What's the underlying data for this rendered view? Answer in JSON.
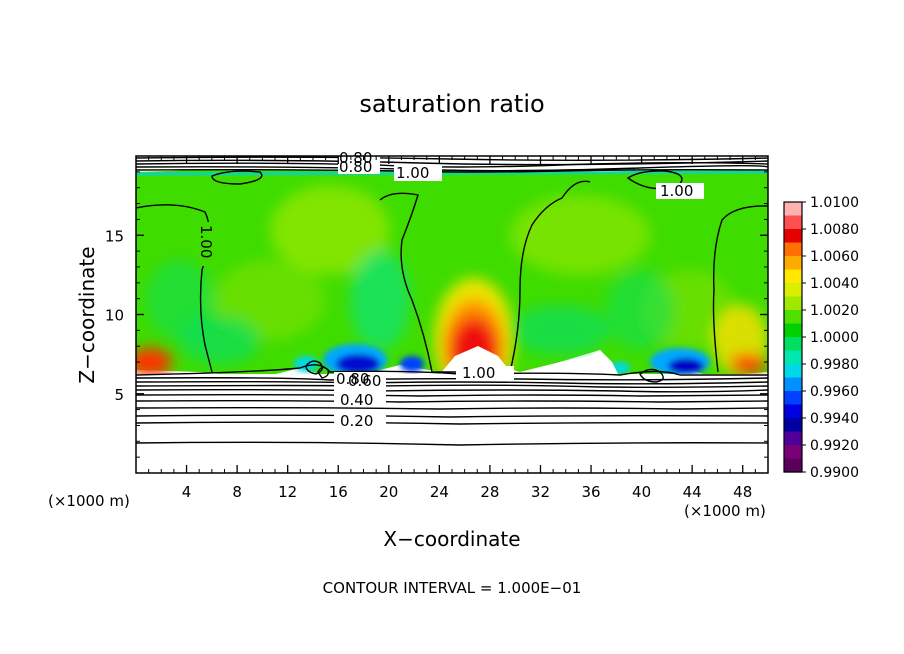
{
  "chart_data": {
    "type": "heatmap",
    "title": "saturation ratio",
    "xlabel": "X−coordinate",
    "ylabel": "Z−coordinate",
    "x_unit_left": "(×1000 m)",
    "x_unit_right": "(×1000 m)",
    "xlim": [
      0,
      50
    ],
    "ylim": [
      0,
      20
    ],
    "x_ticks": [
      4,
      8,
      12,
      16,
      20,
      24,
      28,
      32,
      36,
      40,
      44,
      48
    ],
    "x_tick_labels": [
      "4",
      "8",
      "12",
      "16",
      "20",
      "24",
      "28",
      "32",
      "36",
      "40",
      "44",
      "48"
    ],
    "y_ticks": [
      5,
      10,
      15
    ],
    "y_tick_labels": [
      "5",
      "10",
      "15"
    ],
    "colorbar": {
      "range": [
        0.99,
        1.01
      ],
      "levels": [
        "1.0100",
        "1.0080",
        "1.0060",
        "1.0040",
        "1.0020",
        "1.0000",
        "0.9980",
        "0.9960",
        "0.9940",
        "0.9920",
        "0.9900"
      ],
      "colors": [
        "#ffb0b0",
        "#ff5050",
        "#e60000",
        "#ff7000",
        "#ffaa00",
        "#ffe800",
        "#d8f000",
        "#a0e800",
        "#50e000",
        "#00d000",
        "#00e060",
        "#00e8b0",
        "#00d8e8",
        "#0090ff",
        "#0040ff",
        "#0000e0",
        "#0000a0",
        "#50009a",
        "#7a007a",
        "#5a005a"
      ]
    },
    "contour_labels": [
      {
        "text": "0.80",
        "x": 17.3,
        "z": 19.4
      },
      {
        "text": "0.80",
        "x": 17.3,
        "z": 19.0
      },
      {
        "text": "1.00",
        "x": 22.5,
        "z": 18.7
      },
      {
        "text": "1.00",
        "x": 41.2,
        "z": 17.7
      },
      {
        "text": "1.00",
        "x": 6.0,
        "z": 14.5
      },
      {
        "text": "1.00",
        "x": 28.5,
        "z": 6.2
      },
      {
        "text": "0.80",
        "x": 17.0,
        "z": 5.6
      },
      {
        "text": "0.60",
        "x": 17.0,
        "z": 5.3
      },
      {
        "text": "0.40",
        "x": 17.0,
        "z": 4.6
      },
      {
        "text": "0.20",
        "x": 17.3,
        "z": 3.1
      }
    ],
    "footer": "CONTOUR INTERVAL = 1.000E−01"
  }
}
